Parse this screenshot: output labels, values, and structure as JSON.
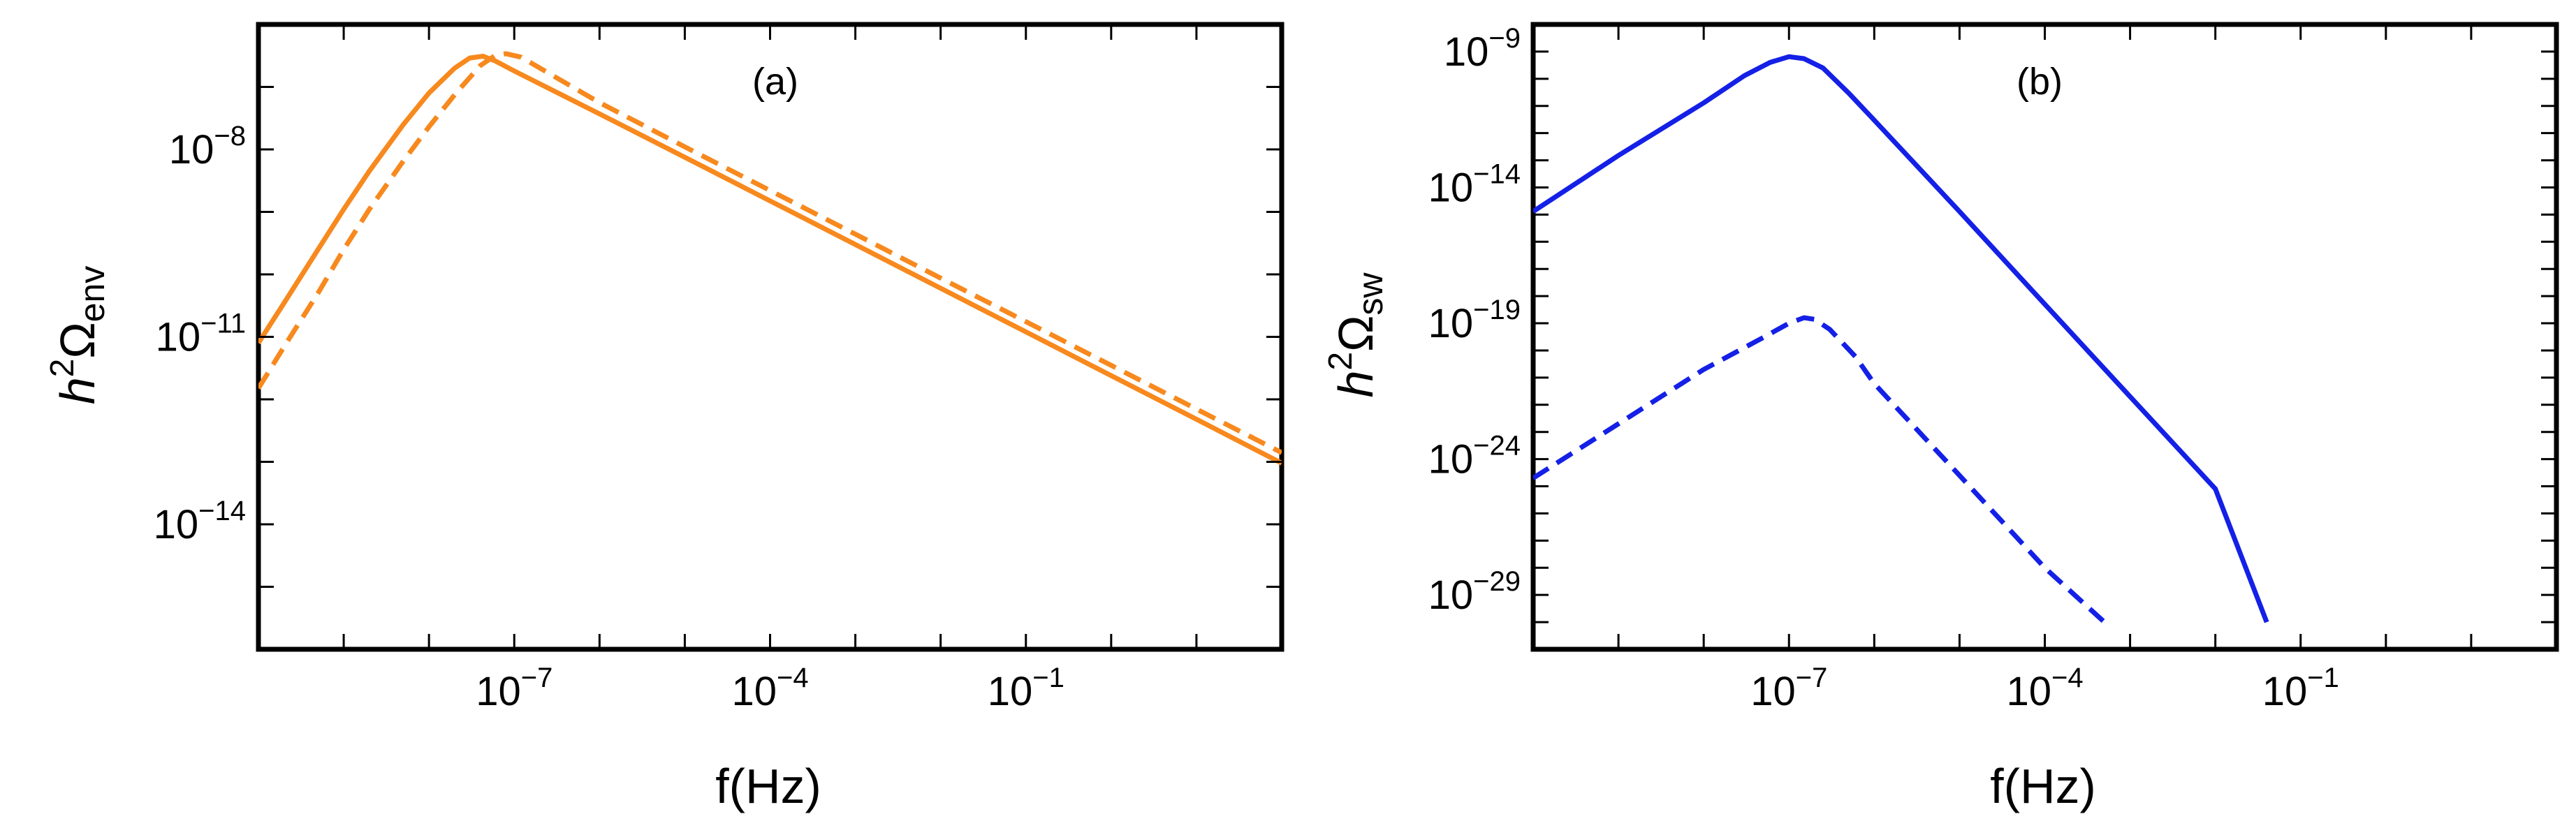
{
  "chart_data": [
    {
      "type": "line",
      "panel_label": "(a)",
      "xlabel": "f(Hz)",
      "ylabel": "h²Ωenv",
      "ylabel_base": "h",
      "ylabel_sup": "2",
      "ylabel_main": "Ω",
      "ylabel_sub": "env",
      "x_scale": "log",
      "y_scale": "log",
      "xlim": [
        1e-10,
        100
      ],
      "ylim": [
        1e-16,
        1e-06
      ],
      "xticks": [
        {
          "value": 1e-07,
          "base": "10",
          "exp": "−7"
        },
        {
          "value": 0.0001,
          "base": "10",
          "exp": "−4"
        },
        {
          "value": 0.1,
          "base": "10",
          "exp": "−1"
        }
      ],
      "yticks": [
        {
          "value": 1e-08,
          "base": "10",
          "exp": "−8"
        },
        {
          "value": 1e-11,
          "base": "10",
          "exp": "−11"
        },
        {
          "value": 1e-14,
          "base": "10",
          "exp": "−14"
        }
      ],
      "color": "#f7891e",
      "grid": false,
      "series": [
        {
          "style": "solid",
          "x": [
            1e-10,
            2e-10,
            5e-10,
            1e-09,
            2e-09,
            5e-09,
            1e-08,
            2e-08,
            3e-08,
            4.3e-08,
            6e-08,
            1e-07,
            1e-06,
            1e-05,
            0.0001,
            0.001,
            0.01,
            0.1,
            1,
            10,
            100
          ],
          "y": [
            8e-12,
            3.5e-11,
            2.5e-10,
            1.1e-09,
            4.5e-09,
            2.5e-08,
            8e-08,
            2e-07,
            2.9e-07,
            3.1e-07,
            2.6e-07,
            1.8e-07,
            3.7e-08,
            7.5e-09,
            1.5e-09,
            3e-10,
            6e-11,
            1.2e-11,
            2.4e-12,
            4.8e-13,
            9.5e-14
          ]
        },
        {
          "style": "dashed",
          "x": [
            1e-10,
            2e-10,
            5e-10,
            1e-09,
            2e-09,
            5e-09,
            1e-08,
            2e-08,
            4e-08,
            6e-08,
            8e-08,
            1.2e-07,
            1e-06,
            1e-05,
            0.0001,
            0.001,
            0.01,
            0.1,
            1,
            10,
            100
          ],
          "y": [
            1.5e-12,
            7e-12,
            5e-11,
            2.5e-10,
            1.1e-09,
            6.5e-09,
            2.3e-08,
            7.5e-08,
            2.2e-07,
            3.2e-07,
            3.4e-07,
            3e-07,
            5.6e-08,
            1.1e-08,
            2.2e-09,
            4.4e-10,
            8.7e-11,
            1.75e-11,
            3.5e-12,
            7e-13,
            1.4e-13
          ]
        }
      ]
    },
    {
      "type": "line",
      "panel_label": "(b)",
      "xlabel": "f(Hz)",
      "ylabel": "h²Ωsw",
      "ylabel_base": "h",
      "ylabel_sup": "2",
      "ylabel_main": "Ω",
      "ylabel_sub": "sw",
      "x_scale": "log",
      "y_scale": "log",
      "xlim": [
        1e-10,
        100
      ],
      "ylim": [
        1e-31,
        1e-08
      ],
      "xticks": [
        {
          "value": 1e-07,
          "base": "10",
          "exp": "−7"
        },
        {
          "value": 0.0001,
          "base": "10",
          "exp": "−4"
        },
        {
          "value": 0.1,
          "base": "10",
          "exp": "−1"
        }
      ],
      "yticks": [
        {
          "value": 1e-09,
          "base": "10",
          "exp": "−9"
        },
        {
          "value": 1e-14,
          "base": "10",
          "exp": "−14"
        },
        {
          "value": 1e-19,
          "base": "10",
          "exp": "−19"
        },
        {
          "value": 1e-24,
          "base": "10",
          "exp": "−24"
        },
        {
          "value": 1e-29,
          "base": "10",
          "exp": "−29"
        }
      ],
      "color": "#1420e6",
      "grid": false,
      "series": [
        {
          "style": "solid",
          "x": [
            1e-10,
            1e-09,
            1e-08,
            3e-08,
            6e-08,
            1e-07,
            1.5e-07,
            2.5e-07,
            5e-07,
            1e-06,
            1e-05,
            0.0001,
            0.001,
            0.01,
            0.04
          ],
          "y": [
            1.3e-15,
            1.5e-13,
            1.3e-11,
            1.3e-10,
            4e-10,
            6.5e-10,
            5.5e-10,
            2.5e-10,
            3e-11,
            3e-12,
            1.3e-15,
            5e-19,
            2e-22,
            8e-26,
            1e-30
          ]
        },
        {
          "style": "dashed",
          "x": [
            1e-10,
            1e-09,
            1e-08,
            5e-08,
            1e-07,
            1.5e-07,
            2e-07,
            3e-07,
            6e-07,
            1e-06,
            1e-05,
            0.0001,
            0.0005
          ],
          "y": [
            2e-25,
            2e-23,
            2e-21,
            3e-20,
            1e-19,
            1.6e-19,
            1.4e-19,
            6e-20,
            6e-21,
            6e-22,
            2.5e-25,
            1e-28,
            1e-30
          ]
        }
      ]
    }
  ]
}
